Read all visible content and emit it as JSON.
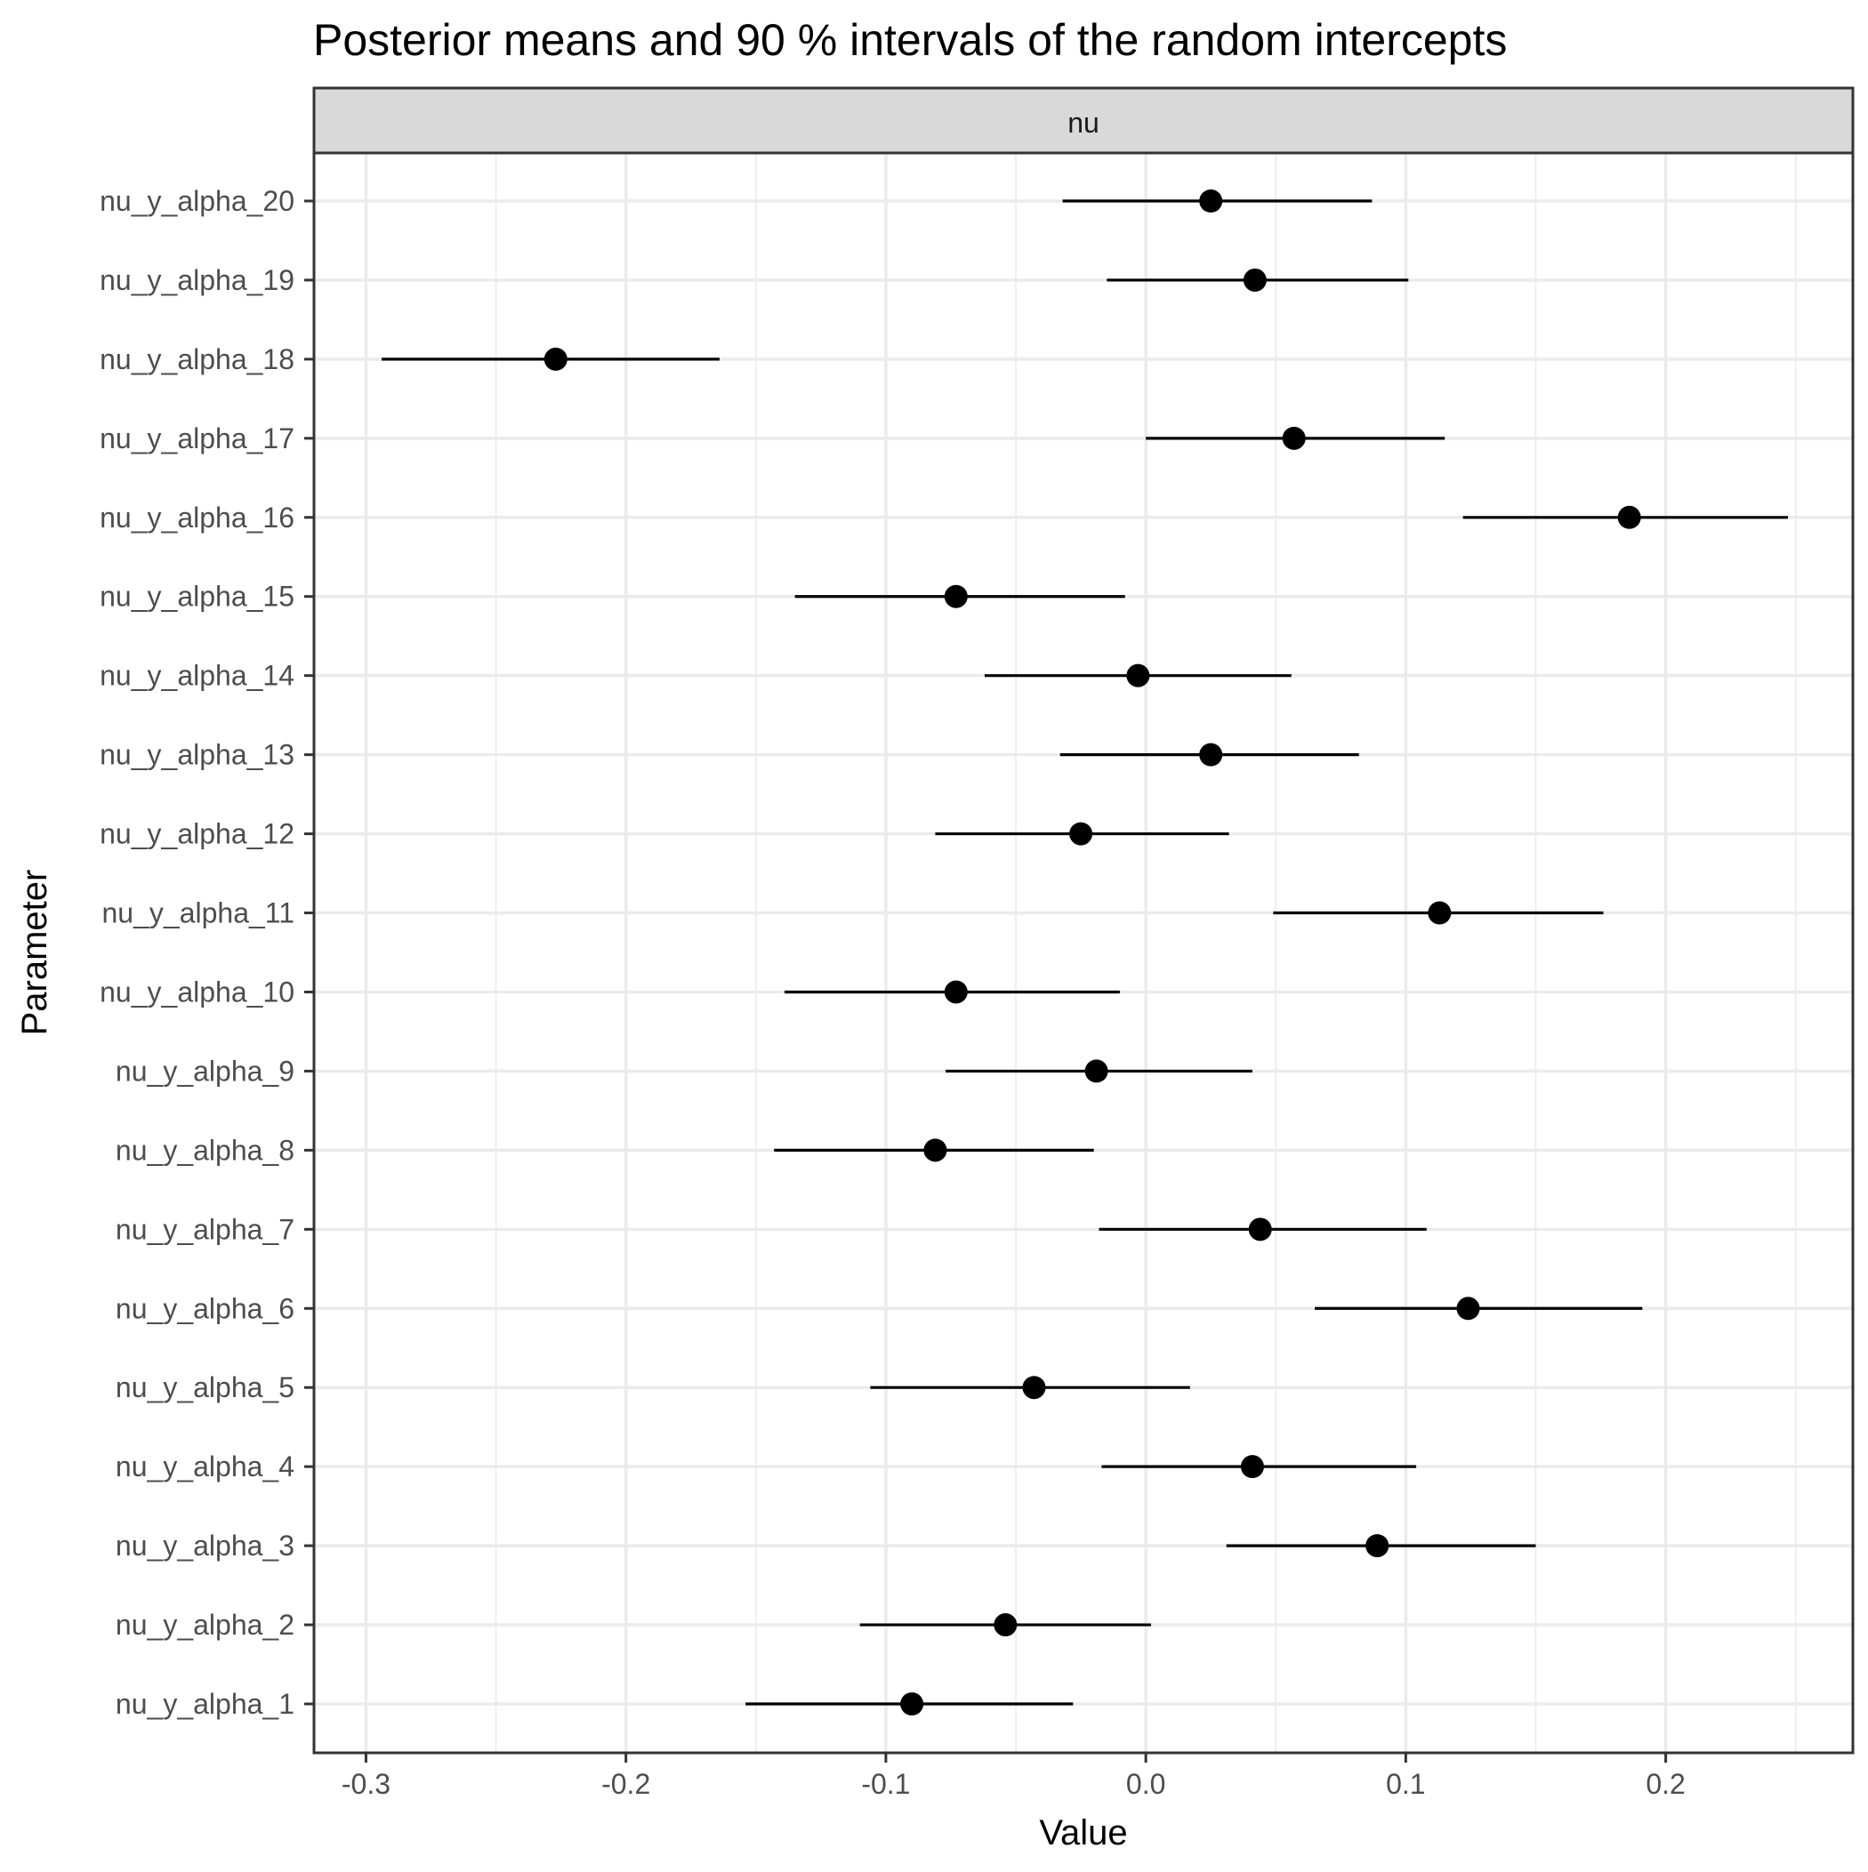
{
  "chart_data": {
    "type": "scatter",
    "subtype": "point-interval",
    "title": "Posterior means and 90 % intervals of the random intercepts",
    "facet": "nu",
    "xlabel": "Value",
    "ylabel": "Parameter",
    "xlim": [
      -0.32,
      0.272
    ],
    "x_ticks": [
      -0.3,
      -0.2,
      -0.1,
      0.0,
      0.1,
      0.2
    ],
    "x_tick_labels": [
      "-0.3",
      "-0.2",
      "-0.1",
      "0.0",
      "0.1",
      "0.2"
    ],
    "grid": true,
    "legend": "none",
    "parameters": [
      {
        "name": "nu_y_alpha_20",
        "mean": 0.025,
        "lo": -0.032,
        "hi": 0.087
      },
      {
        "name": "nu_y_alpha_19",
        "mean": 0.042,
        "lo": -0.015,
        "hi": 0.101
      },
      {
        "name": "nu_y_alpha_18",
        "mean": -0.227,
        "lo": -0.294,
        "hi": -0.164
      },
      {
        "name": "nu_y_alpha_17",
        "mean": 0.057,
        "lo": 0.0,
        "hi": 0.115
      },
      {
        "name": "nu_y_alpha_16",
        "mean": 0.186,
        "lo": 0.122,
        "hi": 0.247
      },
      {
        "name": "nu_y_alpha_15",
        "mean": -0.073,
        "lo": -0.135,
        "hi": -0.008
      },
      {
        "name": "nu_y_alpha_14",
        "mean": -0.003,
        "lo": -0.062,
        "hi": 0.056
      },
      {
        "name": "nu_y_alpha_13",
        "mean": 0.025,
        "lo": -0.033,
        "hi": 0.082
      },
      {
        "name": "nu_y_alpha_12",
        "mean": -0.025,
        "lo": -0.081,
        "hi": 0.032
      },
      {
        "name": "nu_y_alpha_11",
        "mean": 0.113,
        "lo": 0.049,
        "hi": 0.176
      },
      {
        "name": "nu_y_alpha_10",
        "mean": -0.073,
        "lo": -0.139,
        "hi": -0.01
      },
      {
        "name": "nu_y_alpha_9",
        "mean": -0.019,
        "lo": -0.077,
        "hi": 0.041
      },
      {
        "name": "nu_y_alpha_8",
        "mean": -0.081,
        "lo": -0.143,
        "hi": -0.02
      },
      {
        "name": "nu_y_alpha_7",
        "mean": 0.044,
        "lo": -0.018,
        "hi": 0.108
      },
      {
        "name": "nu_y_alpha_6",
        "mean": 0.124,
        "lo": 0.065,
        "hi": 0.191
      },
      {
        "name": "nu_y_alpha_5",
        "mean": -0.043,
        "lo": -0.106,
        "hi": 0.017
      },
      {
        "name": "nu_y_alpha_4",
        "mean": 0.041,
        "lo": -0.017,
        "hi": 0.104
      },
      {
        "name": "nu_y_alpha_3",
        "mean": 0.089,
        "lo": 0.031,
        "hi": 0.15
      },
      {
        "name": "nu_y_alpha_2",
        "mean": -0.054,
        "lo": -0.11,
        "hi": 0.002
      },
      {
        "name": "nu_y_alpha_1",
        "mean": -0.09,
        "lo": -0.154,
        "hi": -0.028
      }
    ]
  },
  "colors": {
    "strip_fill": "#d9d9d9",
    "panel_border": "#333333",
    "marks": "#000000"
  }
}
